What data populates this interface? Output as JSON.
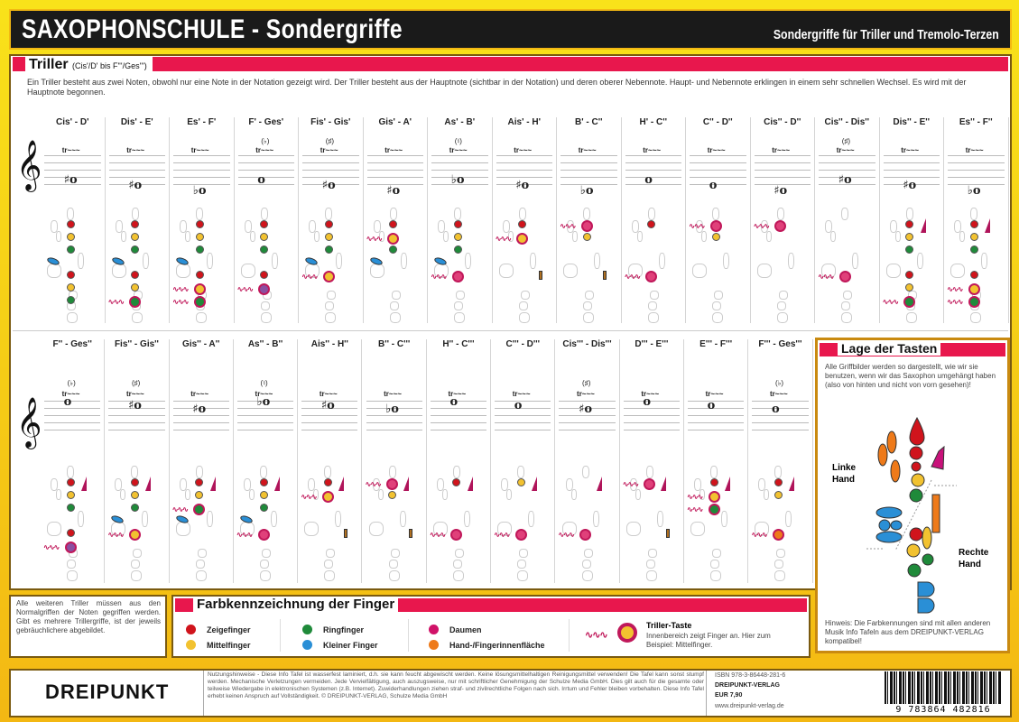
{
  "header": {
    "title": "SAXOPHONSCHULE  -  Sondergriffe",
    "subtitle": "Sondergriffe für Triller und Tremolo-Terzen"
  },
  "triller": {
    "heading": "Triller",
    "range": "(Cis'/D' bis F'''/Ges''')",
    "intro": "Ein Triller besteht aus zwei Noten, obwohl nur eine Note in der Notation gezeigt wird. Der Triller besteht aus der Hauptnote (sichtbar in der Notation) und deren oberer Nebennote. Haupt- und Nebennote erklingen in einem sehr schnellen Wechsel. Es wird mit der Hauptnote begonnen.",
    "trill_mark": "tr~~~",
    "row1": [
      {
        "label": "Cis' - D'",
        "note": "♯o",
        "acc": "",
        "lh": [
          "r",
          "y",
          "g"
        ],
        "rh": [
          "r",
          "y",
          "g"
        ],
        "trill": "b",
        "side": "b"
      },
      {
        "label": "Dis' - E'",
        "note": "♯o",
        "acc": "",
        "lh": [
          "r",
          "y",
          "g"
        ],
        "rh": [
          "r",
          "y",
          "tg"
        ],
        "trill": "g",
        "side": "b2"
      },
      {
        "label": "Es' - F'",
        "note": "♭o",
        "acc": "",
        "lh": [
          "r",
          "y",
          "g"
        ],
        "rh": [
          "r",
          "ty",
          "tg"
        ],
        "trill": "y",
        "side": "b2"
      },
      {
        "label": "F' - Ges'",
        "note": "o",
        "acc": "(♭)",
        "lh": [
          "r",
          "y",
          "g"
        ],
        "rh": [
          "r",
          "tv"
        ],
        "trill": "v",
        "side": ""
      },
      {
        "label": "Fis' - Gis'",
        "note": "♯o",
        "acc": "(♯)",
        "lh": [
          "r",
          "y",
          "g"
        ],
        "rh": [
          "ty"
        ],
        "trill": "y",
        "side": "b"
      },
      {
        "label": "Gis' - A'",
        "note": "♯o",
        "acc": "",
        "lh": [
          "r",
          "ty",
          "g"
        ],
        "rh": [],
        "trill": "y",
        "side": "b"
      },
      {
        "label": "As' - B'",
        "note": "♭o",
        "acc": "(♮)",
        "lh": [
          "r",
          "y",
          "g"
        ],
        "rh": [
          "tp"
        ],
        "trill": "p",
        "side": "b"
      },
      {
        "label": "Ais' - H'",
        "note": "♯o",
        "acc": "",
        "lh": [
          "r",
          "ty"
        ],
        "rh": [],
        "trill": "y",
        "side": "o"
      },
      {
        "label": "B' - C''",
        "note": "♭o",
        "acc": "",
        "lh": [
          "tp",
          "y"
        ],
        "rh": [],
        "trill": "p",
        "side": "o"
      },
      {
        "label": "H' - C''",
        "note": "o",
        "acc": "",
        "lh": [
          "r"
        ],
        "rh": [
          "tp"
        ],
        "trill": "p",
        "side": ""
      },
      {
        "label": "C'' - D''",
        "note": "o",
        "acc": "",
        "lh": [
          "tp",
          "y"
        ],
        "rh": [],
        "trill": "p",
        "side": ""
      },
      {
        "label": "Cis'' - D''",
        "note": "♯o",
        "acc": "",
        "lh": [
          "tp"
        ],
        "rh": [],
        "trill": "p",
        "side": ""
      },
      {
        "label": "Cis'' - Dis''",
        "note": "♯o",
        "acc": "(♯)",
        "lh": [],
        "rh": [
          "tp"
        ],
        "trill": "p",
        "side": ""
      },
      {
        "label": "Dis'' - E''",
        "note": "♯o",
        "acc": "",
        "lh": [
          "r",
          "y",
          "g"
        ],
        "rh": [
          "r",
          "y",
          "tg"
        ],
        "trill": "g",
        "side": "m"
      },
      {
        "label": "Es'' - F''",
        "note": "♭o",
        "acc": "",
        "lh": [
          "r",
          "y",
          "g"
        ],
        "rh": [
          "r",
          "ty",
          "tg"
        ],
        "trill": "y",
        "side": "m"
      }
    ],
    "row2": [
      {
        "label": "F'' - Ges''",
        "note": "o",
        "acc": "(♭)",
        "lh": [
          "r",
          "y",
          "g"
        ],
        "rh": [
          "r",
          "tv"
        ],
        "trill": "v",
        "side": "m"
      },
      {
        "label": "Fis'' - Gis''",
        "note": "♯o",
        "acc": "(♯)",
        "lh": [
          "r",
          "y",
          "g"
        ],
        "rh": [
          "ty"
        ],
        "trill": "y",
        "side": "mb"
      },
      {
        "label": "Gis'' - A''",
        "note": "♯o",
        "acc": "",
        "lh": [
          "r",
          "y",
          "tg"
        ],
        "rh": [],
        "trill": "g",
        "side": "mb"
      },
      {
        "label": "As'' - B''",
        "note": "♭o",
        "acc": "(♮)",
        "lh": [
          "r",
          "y",
          "g"
        ],
        "rh": [
          "tp"
        ],
        "trill": "p",
        "side": "mb"
      },
      {
        "label": "Ais'' - H''",
        "note": "♯o",
        "acc": "",
        "lh": [
          "r",
          "ty"
        ],
        "rh": [],
        "trill": "y",
        "side": "mo"
      },
      {
        "label": "B'' - C'''",
        "note": "♭o",
        "acc": "",
        "lh": [
          "tp",
          "y"
        ],
        "rh": [],
        "trill": "p",
        "side": "mo"
      },
      {
        "label": "H'' - C'''",
        "note": "o",
        "acc": "",
        "lh": [
          "r"
        ],
        "rh": [
          "tp"
        ],
        "trill": "p",
        "side": "m"
      },
      {
        "label": "C''' - D'''",
        "note": "o",
        "acc": "",
        "lh": [
          "y"
        ],
        "rh": [
          "tp"
        ],
        "trill": "p",
        "side": "m"
      },
      {
        "label": "Cis''' - Dis'''",
        "note": "♯o",
        "acc": "(♯)",
        "lh": [],
        "rh": [
          "tp"
        ],
        "trill": "p",
        "side": "m"
      },
      {
        "label": "D''' - E'''",
        "note": "o",
        "acc": "",
        "lh": [
          "tp"
        ],
        "rh": [],
        "trill": "p",
        "side": "mo"
      },
      {
        "label": "E''' - F'''",
        "note": "o",
        "acc": "",
        "lh": [
          "r",
          "ty",
          "tg"
        ],
        "rh": [],
        "trill": "g",
        "side": "m"
      },
      {
        "label": "F''' - Ges'''",
        "note": "o",
        "acc": "(♭)",
        "lh": [
          "r",
          "y"
        ],
        "rh": [
          "to"
        ],
        "trill": "o",
        "side": "m"
      }
    ]
  },
  "lage": {
    "heading": "Lage der Tasten",
    "text": "Alle Griffbilder werden so dargestellt, wie wir sie benutzen, wenn wir das Saxophon umgehängt haben (also von hinten und nicht von vorn gesehen)!",
    "left_hand": "Linke Hand",
    "right_hand": "Rechte Hand",
    "note": "Hinweis: Die Farbkennungen sind mit allen anderen Musik Info Tafeln aus dem DREIPUNKT-VERLAG kompatibel!"
  },
  "side_note": "Alle weiteren Triller müssen aus den Normalgriffen der Noten gegriffen werden. Gibt es mehrere Trillergriffe, ist der jeweils gebräuchlichere abgebildet.",
  "legend": {
    "heading": "Farbkennzeichnung der Finger",
    "items": [
      {
        "label": "Zeigefinger",
        "color": "#d0141c"
      },
      {
        "label": "Mittelfinger",
        "color": "#f2c230"
      },
      {
        "label": "Ringfinger",
        "color": "#1f8a3a"
      },
      {
        "label": "Kleiner Finger",
        "color": "#2a8fd6"
      },
      {
        "label": "Daumen",
        "color": "#d01268"
      },
      {
        "label": "Hand-/Fingerinnenfläche",
        "color": "#ee7a1a"
      }
    ],
    "trill_key_title": "Triller-Taste",
    "trill_key_text": "Innenbereich zeigt Finger an. Hier zum Beispiel: Mittelfinger."
  },
  "footer": {
    "brand": "DREIPUNKT",
    "usage": "Nutzungshinweise - Diese Info Tafel ist wasserfest laminiert, d.h. sie kann feucht abgewischt werden. Keine lösungsmittelhaltigen Reinigungsmittel verwenden! Die Tafel kann sonst stumpf werden. Mechanische Verletzungen vermeiden. Jede Vervielfältigung, auch auszugsweise, nur mit schriftlicher Genehmigung der Schulze Media GmbH. Dies gilt auch für die gesamte oder teilweise Wiedergabe in elektronischen Systemen (z.B. Internet). Zuwiderhandlungen ziehen straf- und zivilrechtliche Folgen nach sich. Irrtum und Fehler bleiben vorbehalten. Diese Info Tafel erhebt keinen Anspruch auf Vollständigkeit. © DREIPUNKT-VERLAG, Schulze Media GmbH",
    "isbn": "ISBN 978-3-86448-281-6",
    "publisher": "DREIPUNKT-VERLAG",
    "price": "EUR 7,90",
    "url": "www.dreipunkt-verlag.de",
    "barcode": "9 783864 482816"
  },
  "colors": {
    "frame": "#f5cc18",
    "header_bg": "#1a1a1a",
    "accent_red": "#e8174d",
    "border_brown": "#8a6310"
  }
}
